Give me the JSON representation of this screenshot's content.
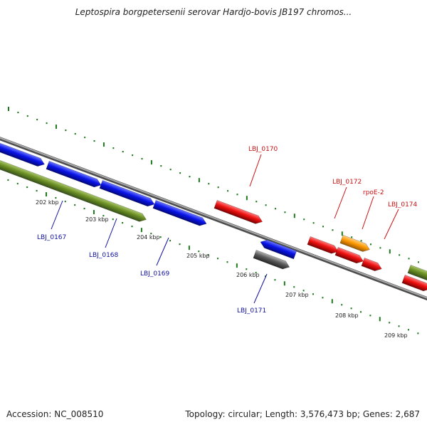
{
  "title": "Leptospira borgpetersenii serovar Hardjo-bovis JB197 chromos...",
  "footer": {
    "accession": "Accession: NC_008510",
    "topology": "Topology: circular; Length: 3,576,473 bp; Genes: 2,687"
  },
  "colors": {
    "blue": "#0a14e8",
    "olive": "#6b8e23",
    "red": "#ee1010",
    "orange": "#ff9900",
    "gray": "#5a5a5a",
    "tick": "#1f7a1f",
    "backbone": "#8a8a8a",
    "label_blue": "#1010a0",
    "label_red": "#cc1010"
  },
  "scale_labels": [
    "202 kbp",
    "203 kbp",
    "204 kbp",
    "205 kbp",
    "206 kbp",
    "207 kbp",
    "208 kbp",
    "209 kbp"
  ],
  "gene_labels": {
    "lbj0167": "LBJ_0167",
    "lbj0168": "LBJ_0168",
    "lbj0169": "LBJ_0169",
    "lbj0170": "LBJ_0170",
    "lbj0171": "LBJ_0171",
    "lbj0172": "LBJ_0172",
    "rpoe2": "rpoE-2",
    "lbj0174": "LBJ_0174"
  }
}
